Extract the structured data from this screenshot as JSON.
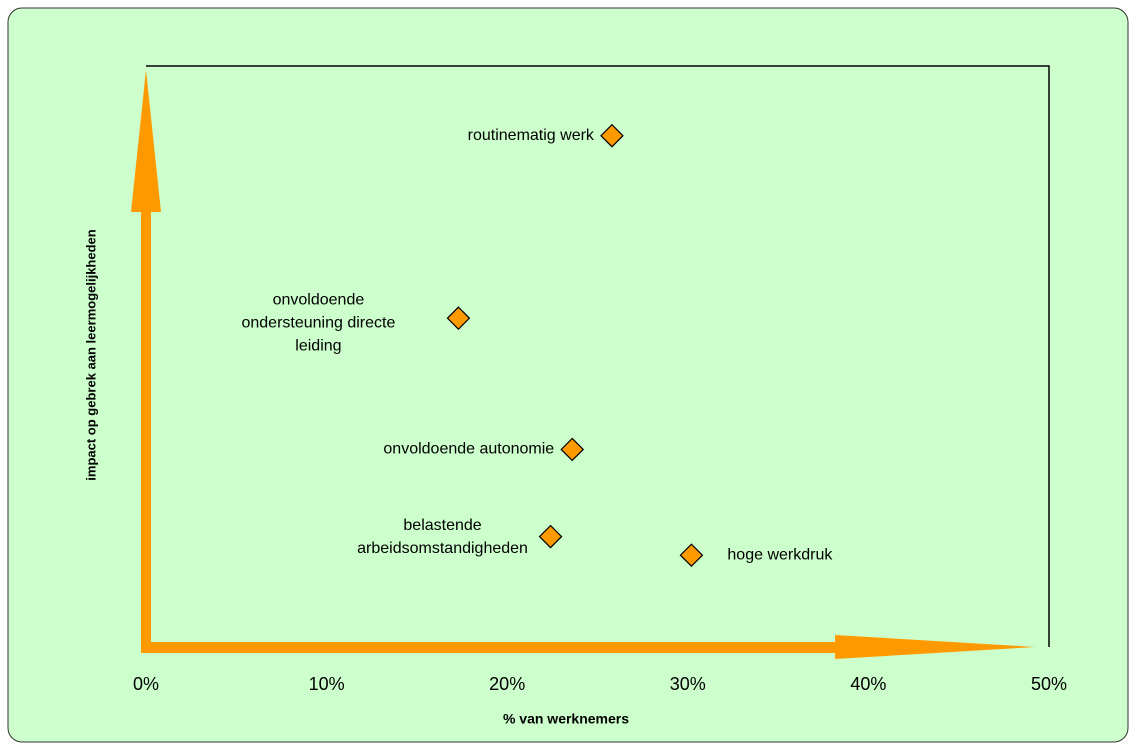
{
  "chart_data": {
    "type": "scatter",
    "xlabel": "% van werknemers",
    "ylabel": "impact op gebrek aan leermogelijkheden",
    "labels": [
      [
        "routinematig werk"
      ],
      [
        "onvoldoende",
        "ondersteuning directe",
        "leiding"
      ],
      [
        "onvoldoende autonomie"
      ],
      [
        "belastende",
        "arbeidsomstandigheden"
      ],
      [
        "hoge werkdruk"
      ]
    ],
    "x": [
      25.8,
      17.3,
      23.6,
      22.4,
      30.2
    ],
    "values": [
      88,
      56.6,
      34,
      19,
      15.8
    ],
    "color": "#ff9900",
    "xlim": [
      0,
      50
    ],
    "ylim": [
      0,
      100
    ],
    "xticks": [
      {
        "value": 0,
        "label": "0%"
      },
      {
        "value": 10,
        "label": "10%"
      },
      {
        "value": 20,
        "label": "20%"
      },
      {
        "value": 30,
        "label": "30%"
      },
      {
        "value": 40,
        "label": "40%"
      },
      {
        "value": 50,
        "label": "50%"
      }
    ]
  }
}
